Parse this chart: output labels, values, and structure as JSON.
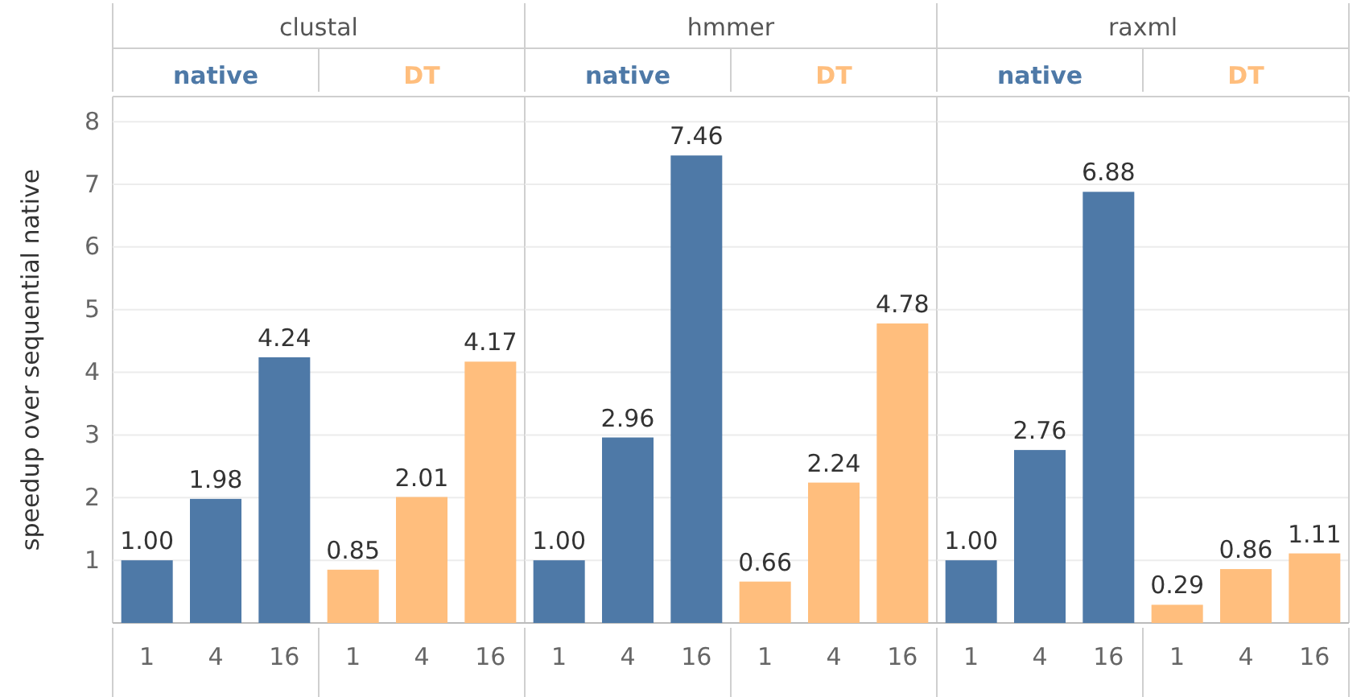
{
  "chart_data": [
    {
      "type": "bar",
      "title": "clustal",
      "ylabel": "speedup over sequential native",
      "categories": [
        "1",
        "4",
        "16",
        "1",
        "4",
        "16"
      ],
      "series": [
        {
          "name": "native",
          "color": "#4e79a7",
          "values": [
            1.0,
            1.98,
            4.24,
            null,
            null,
            null
          ],
          "value_labels": [
            "1.00",
            "1.98",
            "4.24",
            null,
            null,
            null
          ]
        },
        {
          "name": "DT",
          "color": "#ffbe7d",
          "values": [
            null,
            null,
            null,
            0.85,
            2.01,
            4.17
          ],
          "value_labels": [
            null,
            null,
            null,
            "0.85",
            "2.01",
            "4.17"
          ]
        }
      ],
      "ylim": [
        0,
        8.4
      ],
      "yticks": [
        1,
        2,
        3,
        4,
        5,
        6,
        7,
        8
      ],
      "grid": "y"
    },
    {
      "type": "bar",
      "title": "hmmer",
      "categories": [
        "1",
        "4",
        "16",
        "1",
        "4",
        "16"
      ],
      "series": [
        {
          "name": "native",
          "color": "#4e79a7",
          "values": [
            1.0,
            2.96,
            7.46,
            null,
            null,
            null
          ],
          "value_labels": [
            "1.00",
            "2.96",
            "7.46",
            null,
            null,
            null
          ]
        },
        {
          "name": "DT",
          "color": "#ffbe7d",
          "values": [
            null,
            null,
            null,
            0.66,
            2.24,
            4.78
          ],
          "value_labels": [
            null,
            null,
            null,
            "0.66",
            "2.24",
            "4.78"
          ]
        }
      ],
      "ylim": [
        0,
        8.4
      ],
      "yticks": [
        1,
        2,
        3,
        4,
        5,
        6,
        7,
        8
      ],
      "grid": "y",
      "tick_labels": "x"
    },
    {
      "type": "bar",
      "title": "raxml",
      "categories": [
        "1",
        "4",
        "16",
        "1",
        "4",
        "16"
      ],
      "series": [
        {
          "name": "native",
          "color": "#4e79a7",
          "values": [
            1.0,
            2.76,
            6.88,
            null,
            null,
            null
          ],
          "value_labels": [
            "1.00",
            "2.76",
            "6.88",
            null,
            null,
            null
          ]
        },
        {
          "name": "DT",
          "color": "#ffbe7d",
          "values": [
            null,
            null,
            null,
            0.29,
            0.86,
            1.11
          ],
          "value_labels": [
            null,
            null,
            null,
            "0.29",
            "0.86",
            "1.11"
          ]
        }
      ],
      "ylim": [
        0,
        8.4
      ],
      "yticks": [
        1,
        2,
        3,
        4,
        5,
        6,
        7,
        8
      ],
      "grid": "y",
      "tick_labels": "x"
    }
  ]
}
